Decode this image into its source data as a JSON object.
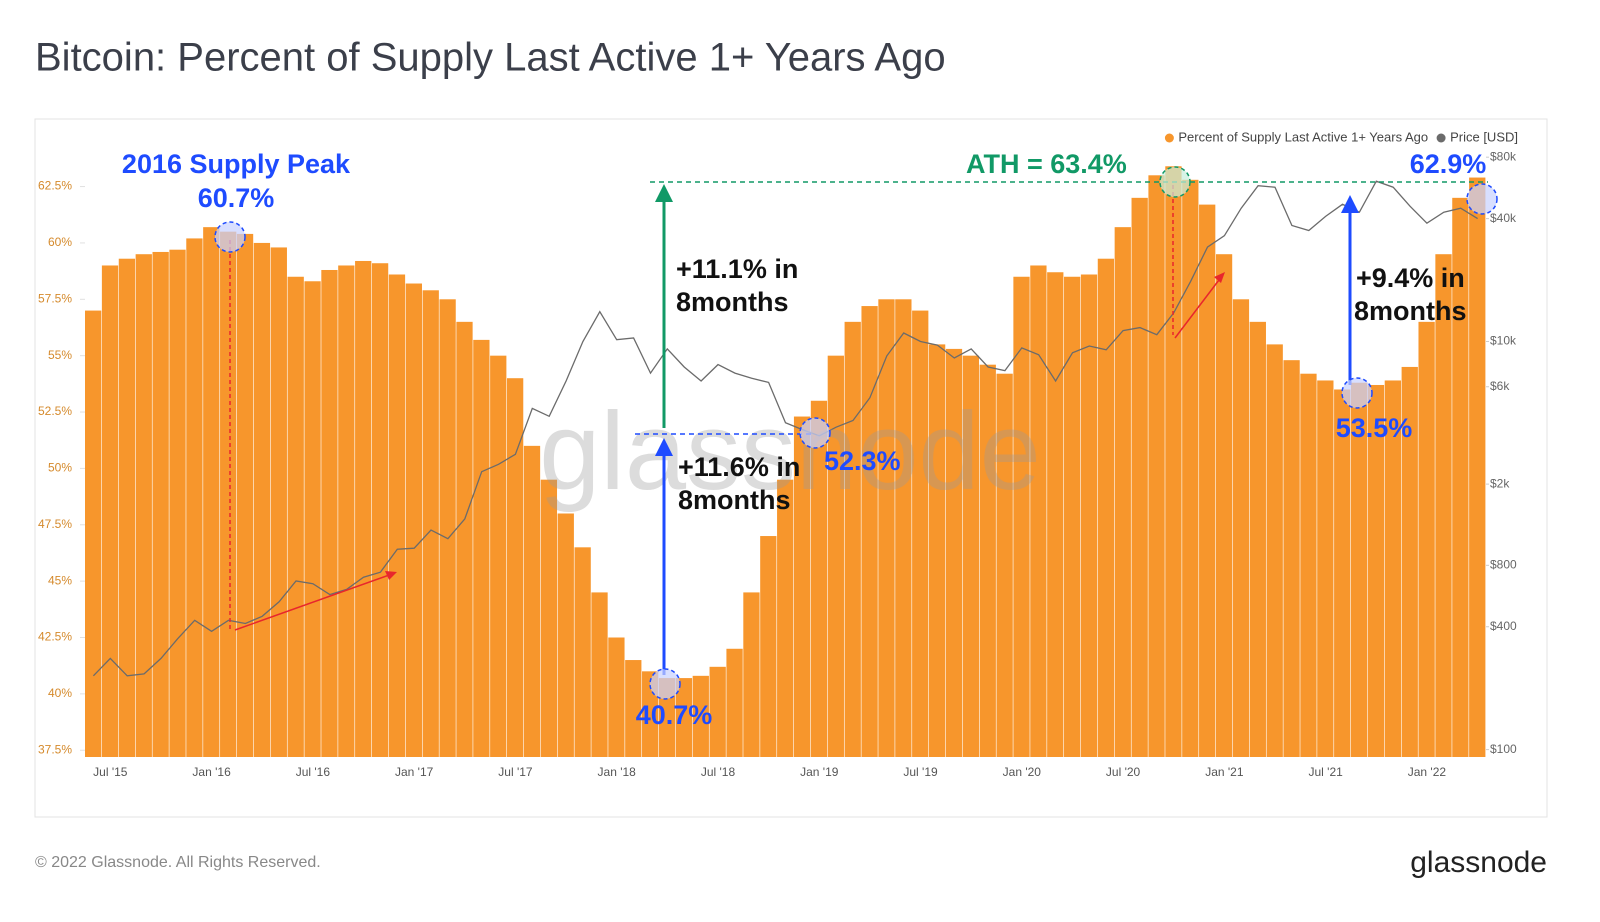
{
  "chart_data": {
    "type": "bar-line",
    "title": "Bitcoin: Percent of Supply Last Active 1+ Years Ago",
    "categories": [
      null,
      "Jul '15",
      null,
      null,
      null,
      null,
      null,
      "Jan '16",
      null,
      null,
      null,
      null,
      null,
      "Jul '16",
      null,
      null,
      null,
      null,
      null,
      "Jan '17",
      null,
      null,
      null,
      null,
      null,
      "Jul '17",
      null,
      null,
      null,
      null,
      null,
      "Jan '18",
      null,
      null,
      null,
      null,
      null,
      "Jul '18",
      null,
      null,
      null,
      null,
      null,
      "Jan '19",
      null,
      null,
      null,
      null,
      null,
      "Jul '19",
      null,
      null,
      null,
      null,
      null,
      "Jan '20",
      null,
      null,
      null,
      null,
      null,
      "Jul '20",
      null,
      null,
      null,
      null,
      null,
      "Jan '21",
      null,
      null,
      null,
      null,
      null,
      "Jul '21",
      null,
      null,
      null,
      null,
      null,
      "Jan '22",
      null,
      null,
      null
    ],
    "series": [
      {
        "name": "Percent of Supply Last Active 1+ Years Ago",
        "color": "#f7962c",
        "values": [
          57,
          59,
          59.3,
          59.5,
          59.6,
          59.7,
          60.2,
          60.7,
          60.5,
          60.4,
          60,
          59.8,
          58.5,
          58.3,
          58.8,
          59,
          59.2,
          59.1,
          58.6,
          58.2,
          57.9,
          57.5,
          56.5,
          55.7,
          55,
          54,
          51,
          49.5,
          48,
          46.5,
          44.5,
          42.5,
          41.5,
          41,
          40.7,
          40.7,
          40.8,
          41.2,
          42,
          44.5,
          47,
          49.5,
          52.3,
          53,
          55,
          56.5,
          57.2,
          57.5,
          57.5,
          57,
          55.5,
          55.3,
          55,
          54.6,
          54.2,
          58.5,
          59,
          58.7,
          58.5,
          58.6,
          59.3,
          60.7,
          62,
          63,
          63.4,
          62.8,
          61.7,
          59.5,
          57.5,
          56.5,
          55.5,
          54.8,
          54.2,
          53.9,
          53.5,
          53.8,
          53.7,
          53.9,
          54.5,
          56.5,
          59.5,
          62,
          62.9
        ]
      },
      {
        "name": "Price [USD]",
        "color": "#6b6b6b",
        "axis": "y2",
        "values": [
          230,
          280,
          230,
          235,
          280,
          350,
          430,
          380,
          430,
          415,
          450,
          530,
          670,
          650,
          575,
          610,
          700,
          740,
          960,
          970,
          1190,
          1080,
          1350,
          2300,
          2500,
          2800,
          4700,
          4300,
          6400,
          10000,
          14000,
          10200,
          10400,
          7000,
          9200,
          7500,
          6400,
          7700,
          7000,
          6600,
          6300,
          4000,
          3700,
          3450,
          3800,
          4100,
          5300,
          8500,
          11000,
          10000,
          9600,
          8300,
          9200,
          7500,
          7200,
          9300,
          8600,
          6400,
          8800,
          9500,
          9100,
          11300,
          11700,
          10800,
          13800,
          19700,
          29000,
          33000,
          45000,
          58000,
          57000,
          37000,
          35000,
          41000,
          47000,
          43000,
          61000,
          57000,
          46000,
          38000,
          43000,
          45000,
          40000
        ]
      }
    ],
    "ylim": [
      37.2,
      63.9
    ],
    "yticks": [
      {
        "value": 37.5,
        "label": "37.5%"
      },
      {
        "value": 40,
        "label": "40%"
      },
      {
        "value": 42.5,
        "label": "42.5%"
      },
      {
        "value": 45,
        "label": "45%"
      },
      {
        "value": 47.5,
        "label": "47.5%"
      },
      {
        "value": 50,
        "label": "50%"
      },
      {
        "value": 52.5,
        "label": "52.5%"
      },
      {
        "value": 55,
        "label": "55%"
      },
      {
        "value": 57.5,
        "label": "57.5%"
      },
      {
        "value": 60,
        "label": "60%"
      },
      {
        "value": 62.5,
        "label": "62.5%"
      }
    ],
    "y2lim": [
      92,
      82000
    ],
    "y2_log": true,
    "y2ticks": [
      {
        "value": 100,
        "label": "$100"
      },
      {
        "value": 400,
        "label": "$400"
      },
      {
        "value": 800,
        "label": "$800"
      },
      {
        "value": 2000,
        "label": "$2k"
      },
      {
        "value": 6000,
        "label": "$6k"
      },
      {
        "value": 10000,
        "label": "$10k"
      },
      {
        "value": 40000,
        "label": "$40k"
      },
      {
        "value": 80000,
        "label": "$80k"
      }
    ],
    "legend": "top-right",
    "watermark": "glassnode",
    "annotations": [
      "2016 Supply Peak",
      "60.7%",
      "+11.1% in",
      "8months",
      "+11.6% in",
      "8months",
      "40.7%",
      "52.3%",
      "ATH = 63.4%",
      "62.9%",
      "+9.4% in",
      "8months",
      "53.5%"
    ]
  },
  "footer": {
    "copyright": "© 2022 Glassnode. All Rights Reserved.",
    "logo": "glassnode"
  }
}
